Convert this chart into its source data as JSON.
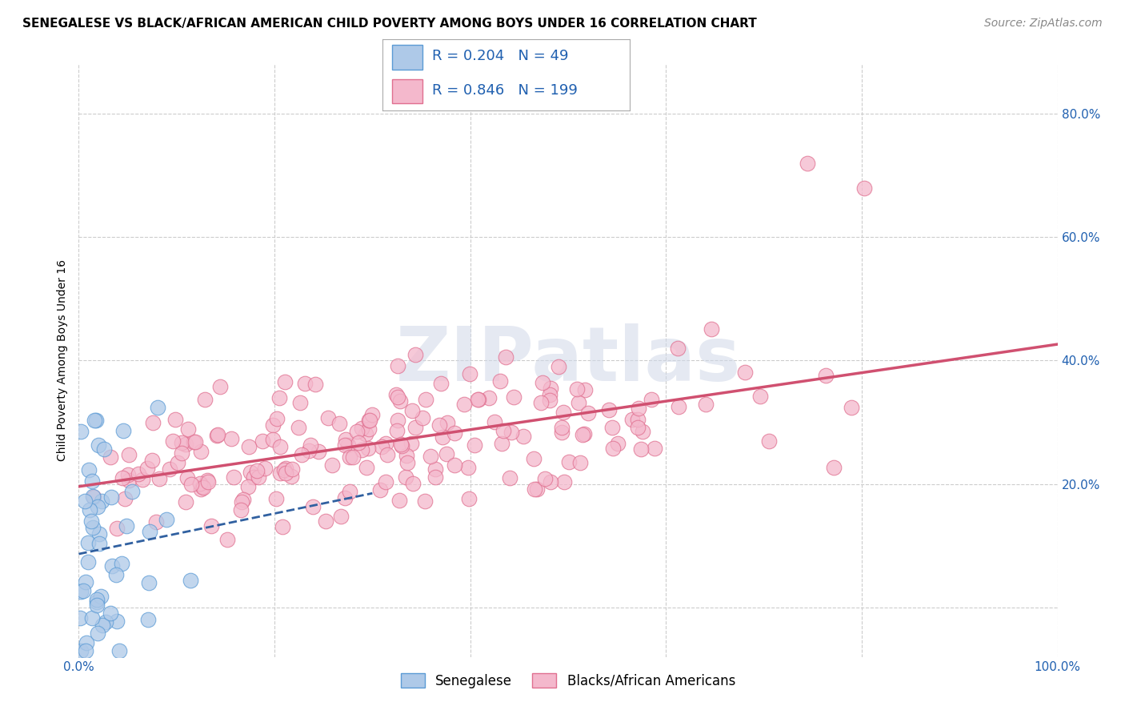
{
  "title": "SENEGALESE VS BLACK/AFRICAN AMERICAN CHILD POVERTY AMONG BOYS UNDER 16 CORRELATION CHART",
  "source": "Source: ZipAtlas.com",
  "ylabel": "Child Poverty Among Boys Under 16",
  "watermark": "ZIPatlas",
  "xlim": [
    0.0,
    1.0
  ],
  "ylim": [
    -0.08,
    0.88
  ],
  "ytick_positions": [
    0.0,
    0.2,
    0.4,
    0.6,
    0.8
  ],
  "ytick_labels": [
    "",
    "20.0%",
    "40.0%",
    "60.0%",
    "80.0%"
  ],
  "xtick_positions": [
    0.0,
    1.0
  ],
  "xtick_labels": [
    "0.0%",
    "100.0%"
  ],
  "senegalese_color": "#aec9e8",
  "senegalese_edge": "#5b9bd5",
  "baa_color": "#f4b8cc",
  "baa_edge": "#e07090",
  "R_senegalese": 0.204,
  "N_senegalese": 49,
  "R_baa": 0.846,
  "N_baa": 199,
  "legend_label_1": "Senegalese",
  "legend_label_2": "Blacks/African Americans",
  "reg_color_senegalese": "#3060a0",
  "reg_color_baa": "#d05070",
  "background_color": "#ffffff",
  "grid_color": "#cccccc",
  "title_fontsize": 11,
  "axis_label_fontsize": 10,
  "tick_fontsize": 11,
  "legend_fontsize": 12,
  "source_fontsize": 10
}
